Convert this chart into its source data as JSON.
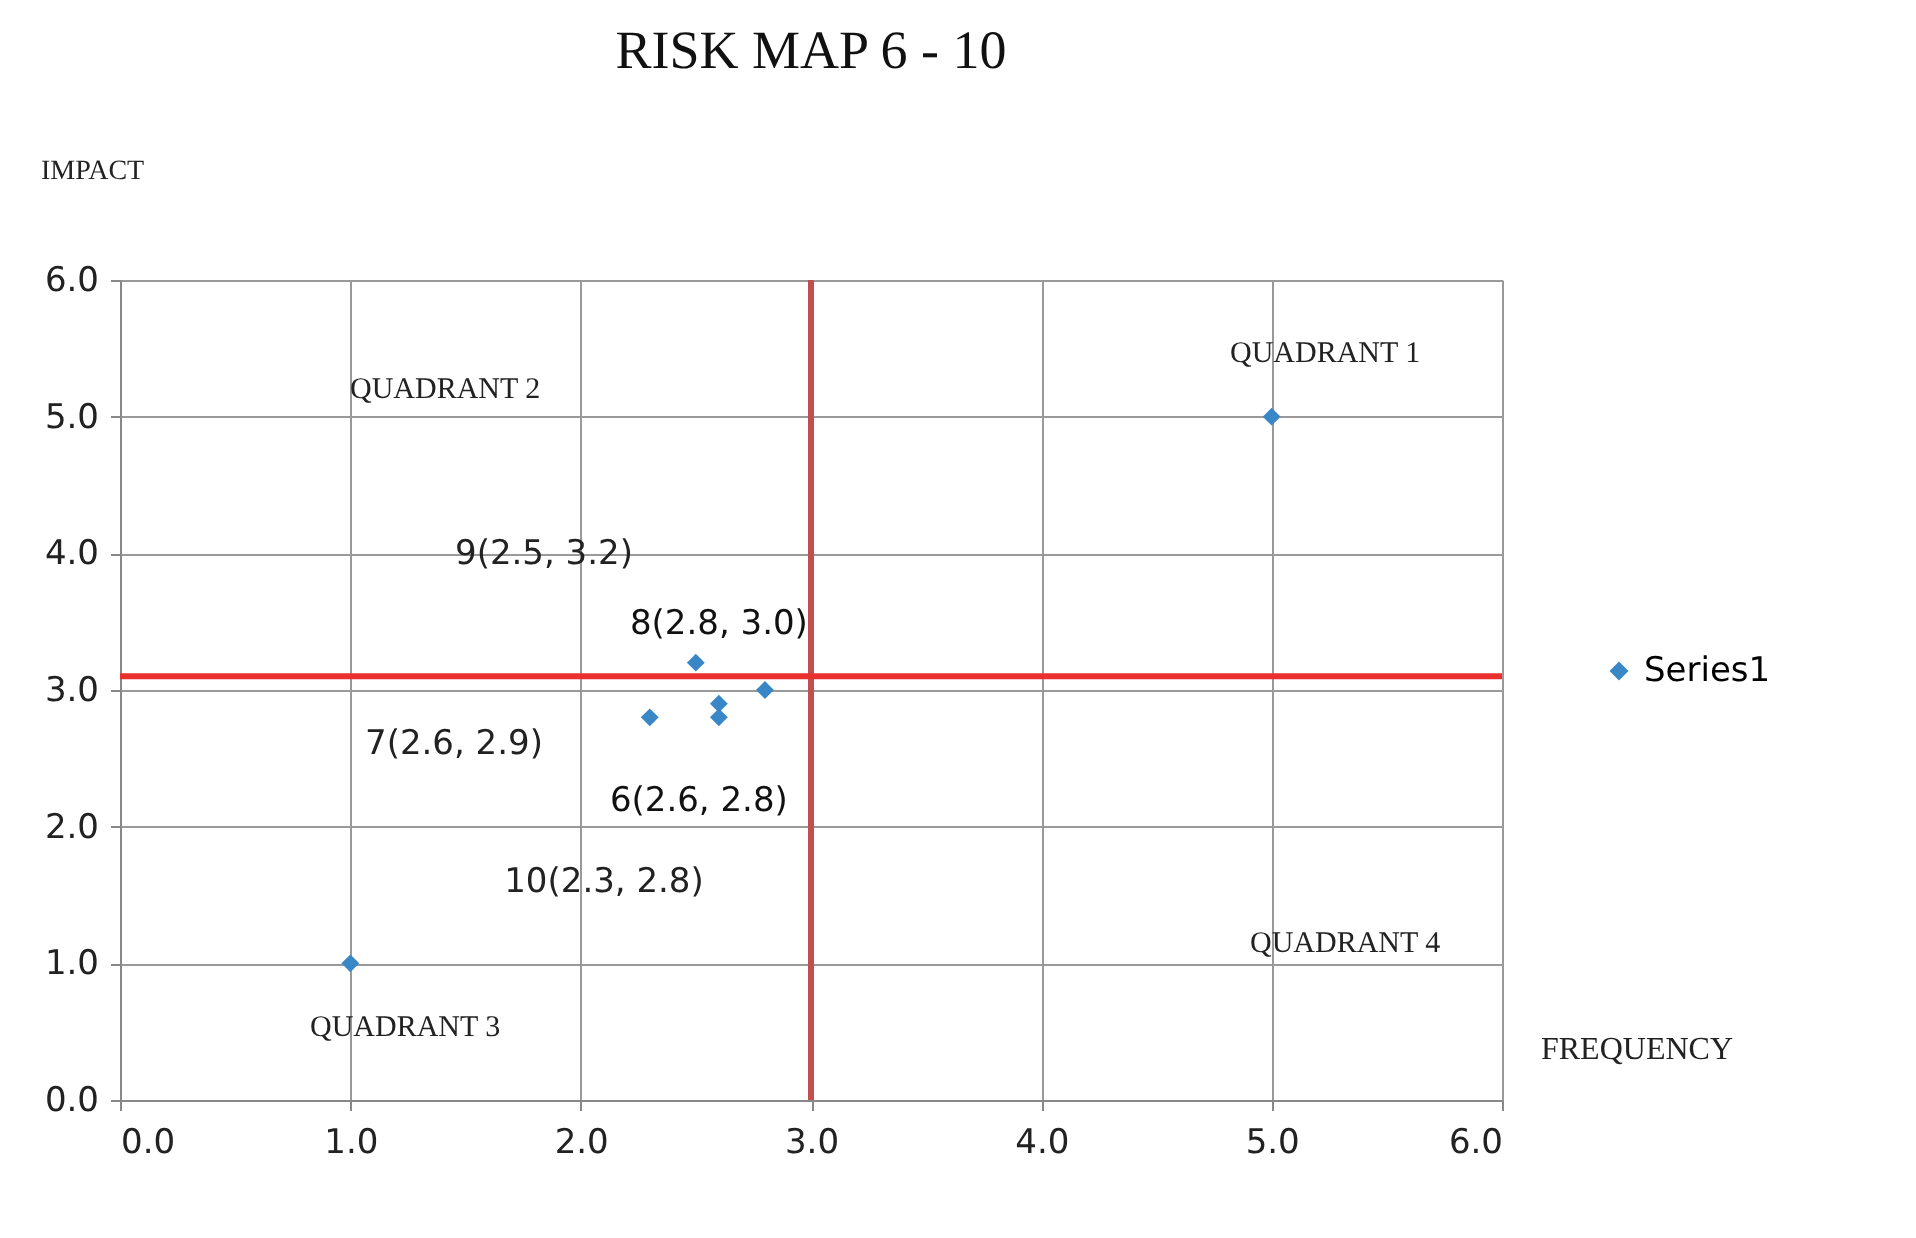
{
  "chart_data": {
    "type": "scatter",
    "title": "RISK MAP     6 - 10",
    "xlabel": "FREQUENCY",
    "ylabel": "IMPACT",
    "x": [
      1.0,
      5.0,
      2.5,
      2.8,
      2.6,
      2.6,
      2.3
    ],
    "series": [
      {
        "name": "Series1",
        "color": "#3a87c8",
        "values": [
          1.0,
          5.0,
          3.2,
          3.0,
          2.9,
          2.8,
          2.8
        ]
      }
    ],
    "marker": "diamond",
    "legend": "right",
    "grid": true,
    "xlim": [
      0,
      6
    ],
    "ylim": [
      0,
      6
    ],
    "xticks": [
      {
        "value": 0,
        "label": "0.0"
      },
      {
        "value": 1,
        "label": "1.0"
      },
      {
        "value": 2,
        "label": "2.0"
      },
      {
        "value": 3,
        "label": "3.0"
      },
      {
        "value": 4,
        "label": "4.0"
      },
      {
        "value": 5,
        "label": "5.0"
      },
      {
        "value": 6,
        "label": "6.0"
      }
    ],
    "yticks": [
      {
        "value": 0,
        "label": "0.0"
      },
      {
        "value": 1,
        "label": "1.0"
      },
      {
        "value": 2,
        "label": "2.0"
      },
      {
        "value": 3,
        "label": "3.0"
      },
      {
        "value": 4,
        "label": "4.0"
      },
      {
        "value": 5,
        "label": "5.0"
      },
      {
        "value": 6,
        "label": "6.0"
      }
    ],
    "ref_lines": [
      {
        "axis": "x",
        "value": 3.0,
        "color": "#c0504d"
      },
      {
        "axis": "y",
        "value": 3.1,
        "color": "#e8312f"
      }
    ],
    "annotations": [
      "QUADRANT     1",
      "QUADRANT     2",
      "QUADRANT 3",
      "QUADRANT 4",
      "9(2.5, 3.2)",
      {
        "text": "8(2.8, 3.0)",
        "x": 2.8,
        "y": 3.0
      },
      "7(2.6, 2.9)",
      {
        "text": "6(2.6, 2.8)",
        "x": 2.6,
        "y": 2.8
      },
      "10(2.3, 2.8)"
    ]
  }
}
